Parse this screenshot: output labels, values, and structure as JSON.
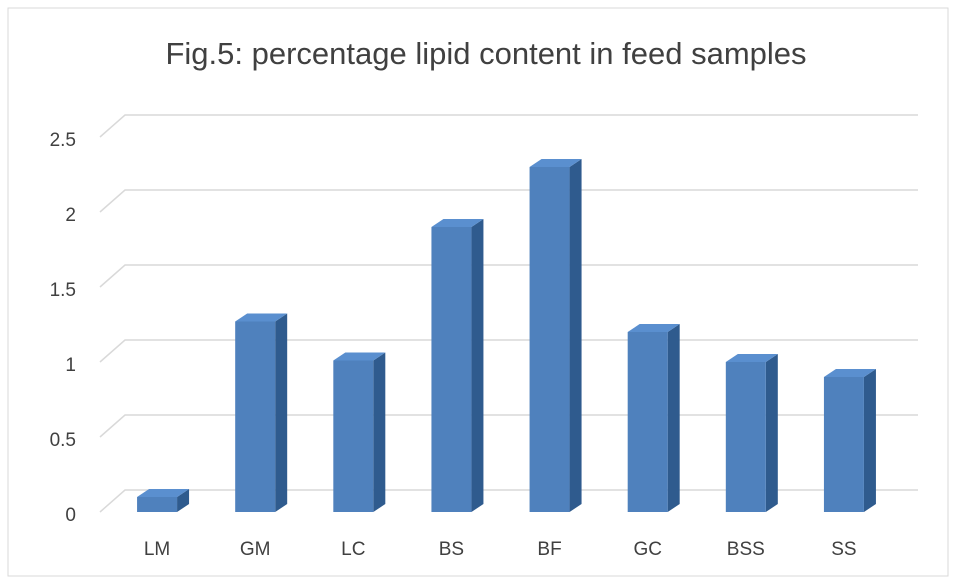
{
  "chart_data": {
    "type": "bar3d",
    "title": "Fig.5: percentage lipid content in feed samples",
    "categories": [
      "LM",
      "GM",
      "LC",
      "BS",
      "BF",
      "GC",
      "BSS",
      "SS"
    ],
    "values": [
      0.1,
      1.27,
      1.01,
      1.9,
      2.3,
      1.2,
      1.0,
      0.9
    ],
    "color": "#4f81bd",
    "ylim": [
      0,
      2.5
    ],
    "yticks": [
      0,
      0.5,
      1,
      1.5,
      2,
      2.5
    ],
    "grid": true
  }
}
